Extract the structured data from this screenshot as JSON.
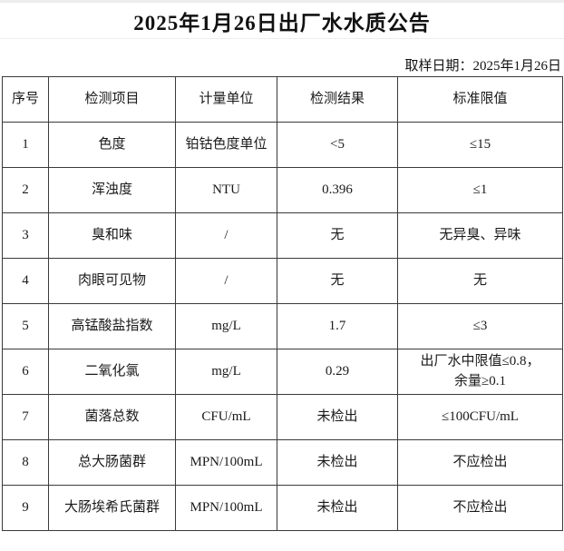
{
  "page": {
    "title": "2025年1月26日出厂水水质公告",
    "sampling_date": "取样日期：2025年1月26日"
  },
  "table": {
    "headers": [
      "序号",
      "检测项目",
      "计量单位",
      "检测结果",
      "标准限值"
    ],
    "rows": [
      [
        "1",
        "色度",
        "铂钴色度单位",
        "<5",
        "≤15"
      ],
      [
        "2",
        "浑浊度",
        "NTU",
        "0.396",
        "≤1"
      ],
      [
        "3",
        "臭和味",
        "/",
        "无",
        "无异臭、异味"
      ],
      [
        "4",
        "肉眼可见物",
        "/",
        "无",
        "无"
      ],
      [
        "5",
        "高锰酸盐指数",
        "mg/L",
        "1.7",
        "≤3"
      ],
      [
        "6",
        "二氧化氯",
        "mg/L",
        "0.29",
        "出厂水中限值≤0.8，\n余量≥0.1"
      ],
      [
        "7",
        "菌落总数",
        "CFU/mL",
        "未检出",
        "≤100CFU/mL"
      ],
      [
        "8",
        "总大肠菌群",
        "MPN/100mL",
        "未检出",
        "不应检出"
      ],
      [
        "9",
        "大肠埃希氏菌群",
        "MPN/100mL",
        "未检出",
        "不应检出"
      ]
    ]
  },
  "colors": {
    "table_border": "#3a3a3a",
    "light_grid": "#ededed",
    "text": "#1a1a1a",
    "background": "#ffffff"
  }
}
